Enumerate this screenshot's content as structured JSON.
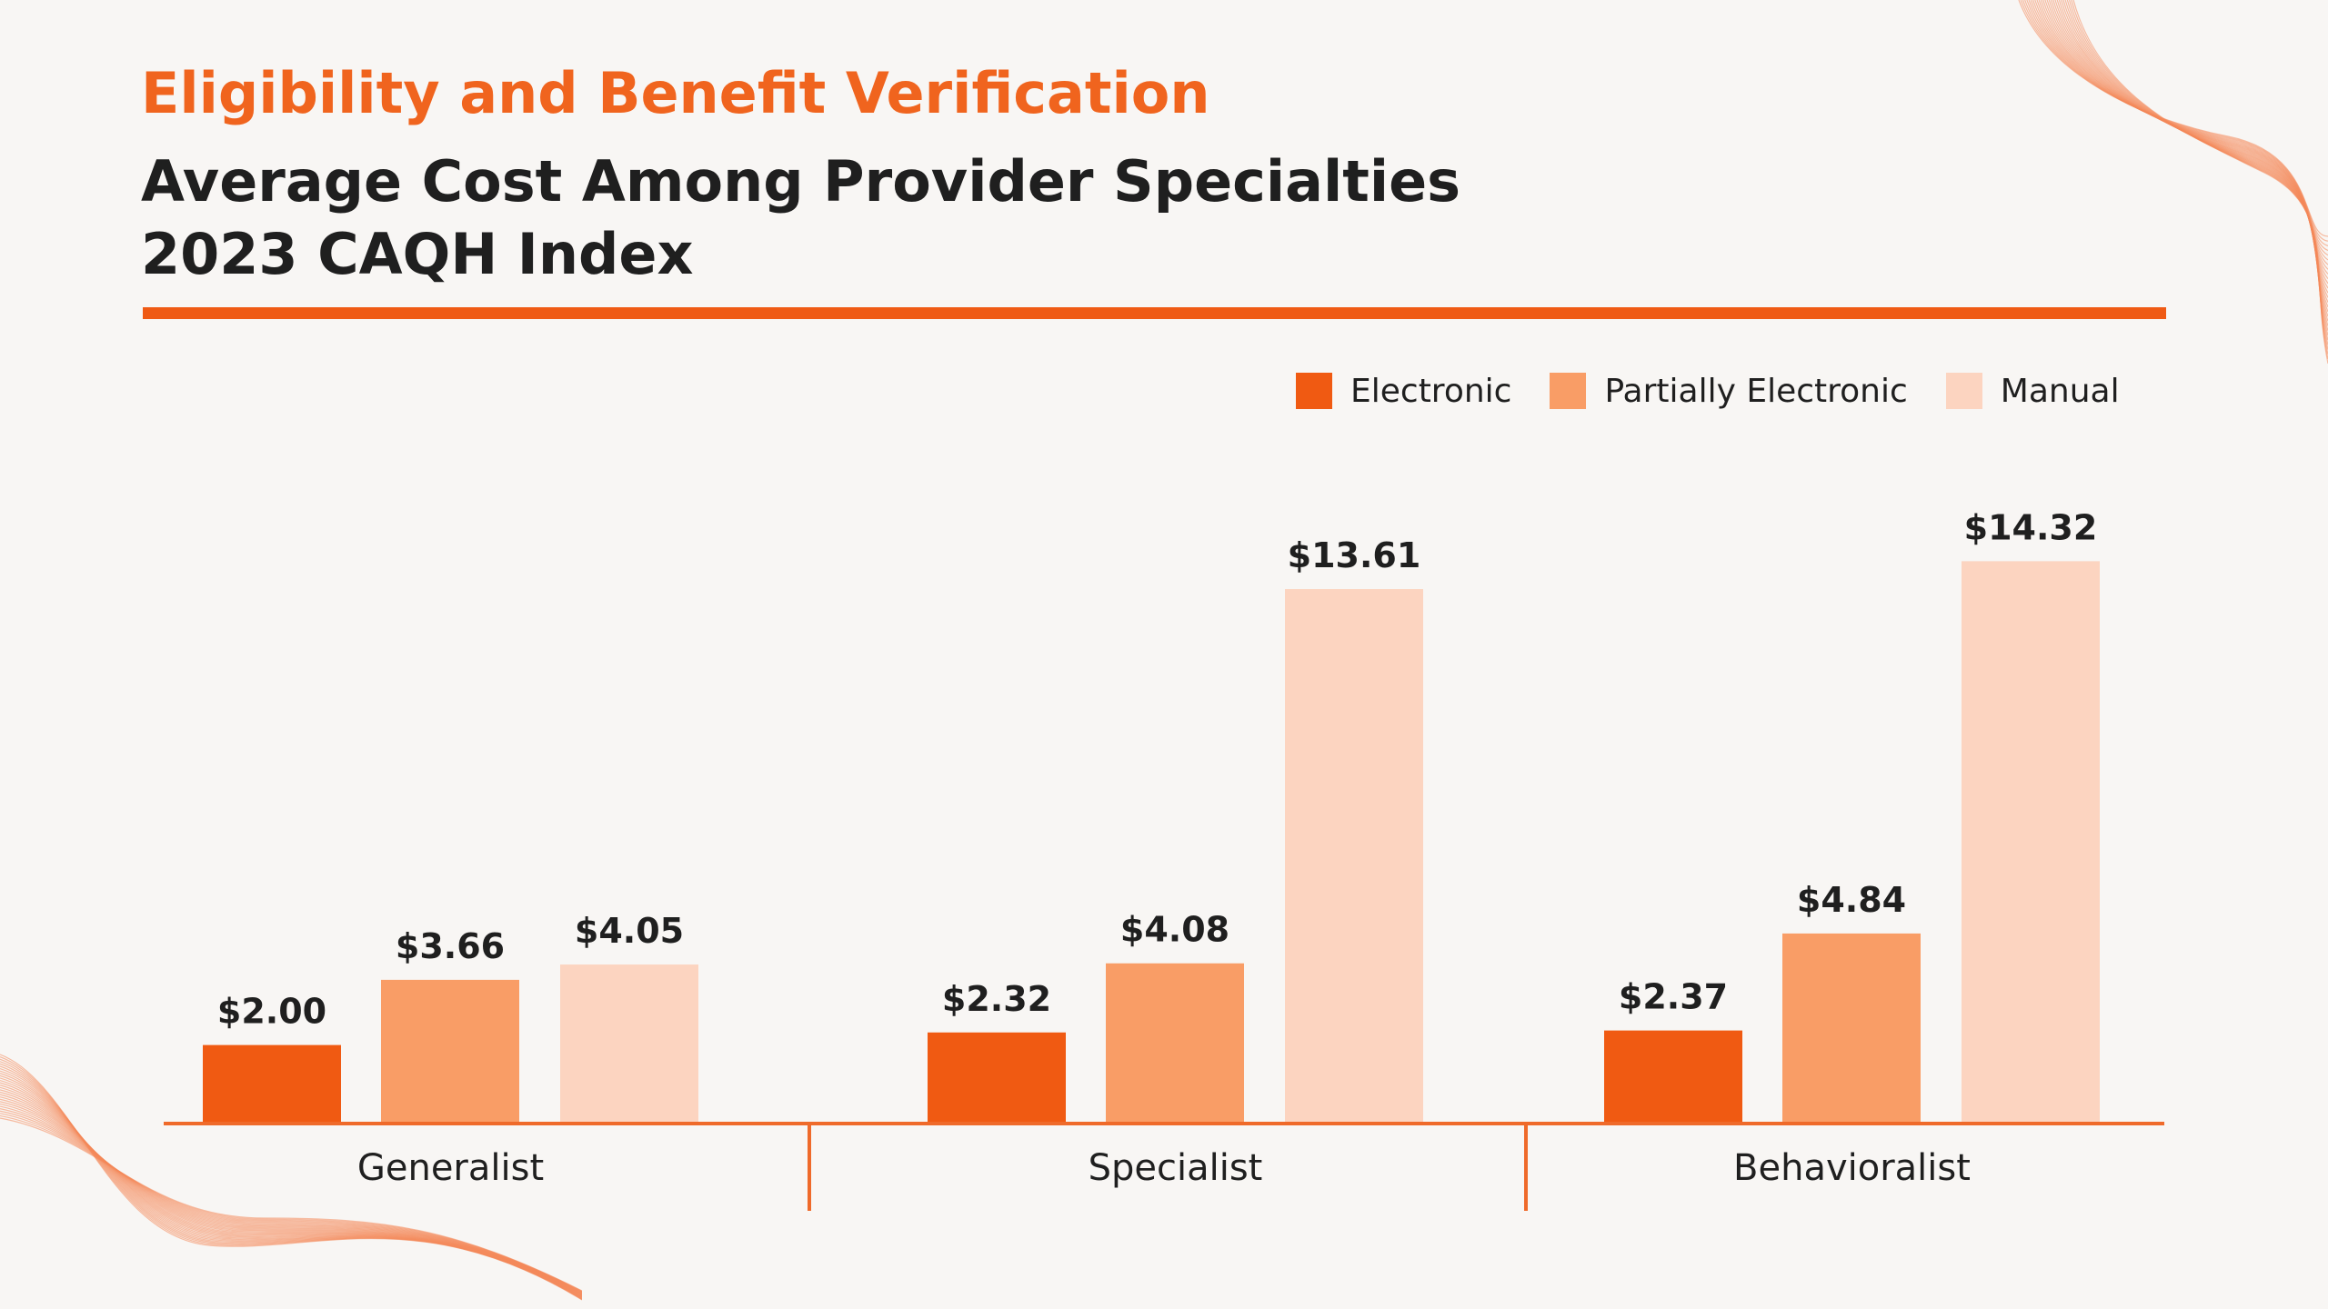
{
  "header": {
    "eyebrow": "Eligibility and Benefit Verification",
    "title_line1": "Average Cost Among Provider Specialties",
    "title_line2": "2023 CAQH Index"
  },
  "colors": {
    "accent": "#f0641e",
    "rule": "#ef5a14",
    "electronic": "#f05a12",
    "partially_electronic": "#f99d66",
    "manual": "#fcd4c0",
    "axis": "#ef6a2a",
    "text": "#1f1f1f",
    "background": "#f8f6f4"
  },
  "chart_data": {
    "type": "bar",
    "title": "Average Cost Among Provider Specialties",
    "subtitle": "2023 CAQH Index",
    "categories": [
      "Generalist",
      "Specialist",
      "Behavioralist"
    ],
    "series": [
      {
        "name": "Electronic",
        "values": [
          2.0,
          2.32,
          2.37
        ],
        "labels": [
          "$2.00",
          "$2.32",
          "$2.37"
        ],
        "color": "#f05a12"
      },
      {
        "name": "Partially Electronic",
        "values": [
          3.66,
          4.08,
          4.84
        ],
        "labels": [
          "$3.66",
          "$4.08",
          "$4.84"
        ],
        "color": "#f99d66"
      },
      {
        "name": "Manual",
        "values": [
          4.05,
          13.61,
          14.32
        ],
        "labels": [
          "$4.05",
          "$13.61",
          "$14.32"
        ],
        "color": "#fcd4c0"
      }
    ],
    "ylim": [
      0,
      15
    ],
    "grid": false,
    "legend_position": "top-right",
    "xlabel": "",
    "ylabel": ""
  }
}
